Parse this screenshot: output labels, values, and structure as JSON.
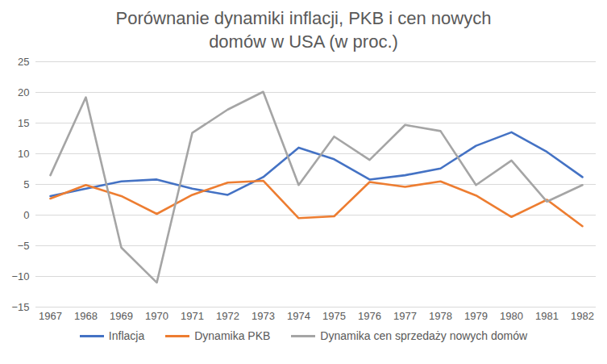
{
  "chart_data": {
    "type": "line",
    "title": "Porównanie dynamiki inflacji, PKB i cen nowych domów w USA (w proc.)",
    "categories": [
      "1967",
      "1968",
      "1969",
      "1970",
      "1971",
      "1972",
      "1973",
      "1974",
      "1975",
      "1976",
      "1977",
      "1978",
      "1979",
      "1980",
      "1981",
      "1982"
    ],
    "series": [
      {
        "name": "Inflacja",
        "color": "#4472c4",
        "values": [
          3.1,
          4.3,
          5.5,
          5.8,
          4.3,
          3.3,
          6.2,
          11.0,
          9.1,
          5.8,
          6.5,
          7.6,
          11.3,
          13.5,
          10.3,
          6.2
        ]
      },
      {
        "name": "Dynamika PKB",
        "color": "#ed7d31",
        "values": [
          2.7,
          4.9,
          3.1,
          0.2,
          3.3,
          5.3,
          5.6,
          -0.5,
          -0.2,
          5.4,
          4.6,
          5.5,
          3.2,
          -0.3,
          2.5,
          -1.8
        ]
      },
      {
        "name": "Dynamika cen sprzedaży nowych domów",
        "color": "#a5a5a5",
        "values": [
          6.5,
          19.2,
          -5.3,
          -11.0,
          13.4,
          17.2,
          20.1,
          4.9,
          12.8,
          9.0,
          14.7,
          13.7,
          4.9,
          8.9,
          2.2,
          4.9
        ]
      }
    ],
    "ylim": [
      -15,
      25
    ],
    "yticks": [
      -15,
      -10,
      -5,
      0,
      5,
      10,
      15,
      20,
      25
    ],
    "grid": true,
    "legend": "bottom"
  }
}
